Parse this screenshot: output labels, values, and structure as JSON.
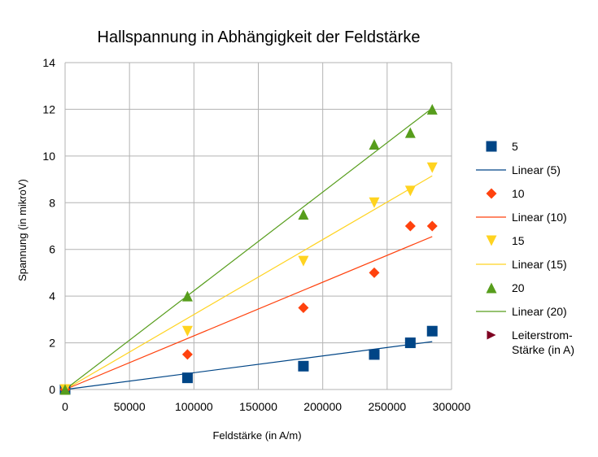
{
  "chart_data": {
    "type": "scatter",
    "title": "Hallspannung in Abhängigkeit der Feldstärke",
    "xlabel": "Feldstärke (in A/m)",
    "ylabel": "Spannung (in mikroV)",
    "xlim": [
      0,
      300000
    ],
    "ylim": [
      0,
      14
    ],
    "x_ticks": [
      0,
      50000,
      100000,
      150000,
      200000,
      250000,
      300000
    ],
    "y_ticks": [
      0,
      2,
      4,
      6,
      8,
      10,
      12,
      14
    ],
    "grid": true,
    "legend_position": "right",
    "series": [
      {
        "name": "5",
        "marker": "square",
        "color": "#004586",
        "x": [
          0,
          95000,
          185000,
          240000,
          268000,
          285000
        ],
        "y": [
          0,
          0.5,
          1,
          1.5,
          2,
          2.5
        ],
        "trendline": {
          "name": "Linear (5)",
          "x": [
            0,
            285000
          ],
          "y": [
            0,
            2.05
          ]
        }
      },
      {
        "name": "10",
        "marker": "diamond",
        "color": "#ff420e",
        "x": [
          0,
          95000,
          185000,
          240000,
          268000,
          285000
        ],
        "y": [
          0,
          1.5,
          3.5,
          5,
          7,
          7
        ],
        "trendline": {
          "name": "Linear (10)",
          "x": [
            0,
            285000
          ],
          "y": [
            0,
            6.55
          ]
        }
      },
      {
        "name": "15",
        "marker": "triangle-down",
        "color": "#ffd320",
        "x": [
          0,
          95000,
          185000,
          240000,
          268000,
          285000
        ],
        "y": [
          0,
          2.5,
          5.5,
          8,
          8.5,
          9.5
        ],
        "trendline": {
          "name": "Linear (15)",
          "x": [
            0,
            285000
          ],
          "y": [
            0,
            9.15
          ]
        }
      },
      {
        "name": "20",
        "marker": "triangle-up",
        "color": "#579d1c",
        "x": [
          0,
          95000,
          185000,
          240000,
          268000,
          285000
        ],
        "y": [
          0,
          4,
          7.5,
          10.5,
          11,
          12
        ],
        "trendline": {
          "name": "Linear (20)",
          "x": [
            0,
            285000
          ],
          "y": [
            0,
            12.05
          ]
        }
      },
      {
        "name": "Leiterstrom-Stärke (in A)",
        "marker": "triangle-right",
        "color": "#7e0021",
        "x": [],
        "y": []
      }
    ],
    "legend": [
      {
        "label": "5",
        "kind": "marker",
        "marker": "square",
        "color": "#004586"
      },
      {
        "label": "Linear (5)",
        "kind": "line",
        "color": "#004586"
      },
      {
        "label": "10",
        "kind": "marker",
        "marker": "diamond",
        "color": "#ff420e"
      },
      {
        "label": "Linear (10)",
        "kind": "line",
        "color": "#ff420e"
      },
      {
        "label": "15",
        "kind": "marker",
        "marker": "triangle-down",
        "color": "#ffd320"
      },
      {
        "label": "Linear (15)",
        "kind": "line",
        "color": "#ffd320"
      },
      {
        "label": "20",
        "kind": "marker",
        "marker": "triangle-up",
        "color": "#579d1c"
      },
      {
        "label": "Linear (20)",
        "kind": "line",
        "color": "#579d1c"
      },
      {
        "label": "Leiterstrom-Stärke (in A)",
        "label_lines": [
          "Leiterstrom-",
          "Stärke (in A)"
        ],
        "kind": "marker",
        "marker": "triangle-right",
        "color": "#7e0021"
      }
    ]
  }
}
